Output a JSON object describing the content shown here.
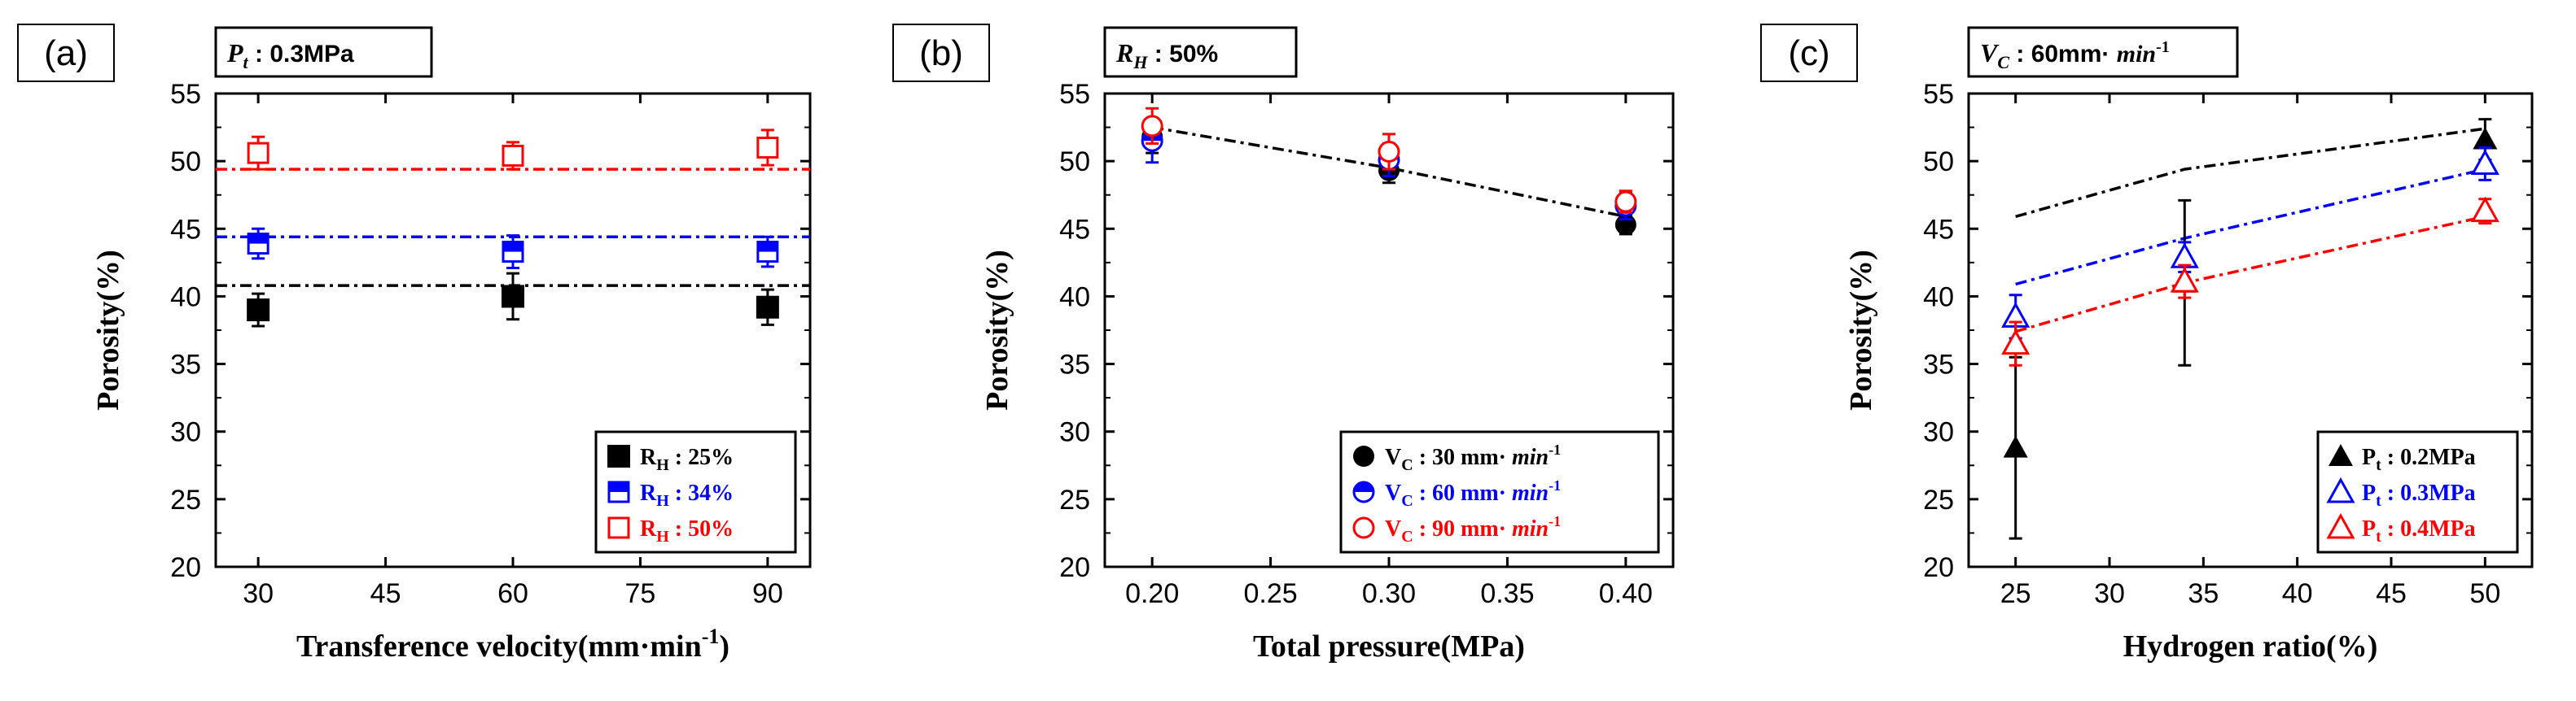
{
  "chart_data": [
    {
      "panel_label": "(a)",
      "type": "scatter",
      "condition": {
        "symbol": "P",
        "sub": "t",
        "text": " : 0.3MPa"
      },
      "xlabel": "Transference velocity(mm·min",
      "xlabel_sup": "-1",
      "xlabel_close": ")",
      "ylabel": "Porosity(%)",
      "xlim": [
        25,
        95
      ],
      "ylim": [
        20,
        55
      ],
      "xticks": [
        30,
        45,
        60,
        75,
        90
      ],
      "xtick_labels": [
        "30",
        "45",
        "60",
        "75",
        "90"
      ],
      "yticks": [
        20,
        25,
        30,
        35,
        40,
        45,
        50,
        55
      ],
      "grid": false,
      "legend_position": "bottom-right",
      "series": [
        {
          "legend_prefix": "R",
          "legend_sub": "H",
          "legend_text": " : 25%",
          "color": "#000000",
          "marker": "square-filled",
          "x": [
            30,
            60,
            90
          ],
          "y": [
            39.0,
            40.0,
            39.2
          ],
          "err": [
            1.2,
            1.7,
            1.3
          ],
          "fit": {
            "x": [
              25,
              95
            ],
            "y": [
              40.8,
              40.8
            ],
            "dash": "14,6,4,6"
          }
        },
        {
          "legend_prefix": "R",
          "legend_sub": "H",
          "legend_text": " : 34%",
          "color": "#0000ff",
          "marker": "square-half",
          "x": [
            30,
            60,
            90
          ],
          "y": [
            43.9,
            43.3,
            43.3
          ],
          "err": [
            1.1,
            1.2,
            1.1
          ],
          "fit": {
            "x": [
              25,
              95
            ],
            "y": [
              44.4,
              44.4
            ],
            "dash": "14,6,4,6"
          }
        },
        {
          "legend_prefix": "R",
          "legend_sub": "H",
          "legend_text": " : 50%",
          "color": "#ff0000",
          "marker": "square-open",
          "x": [
            30,
            60,
            90
          ],
          "y": [
            50.6,
            50.4,
            51.0
          ],
          "err": [
            1.2,
            1.0,
            1.3
          ],
          "fit": {
            "x": [
              25,
              95
            ],
            "y": [
              49.4,
              49.4
            ],
            "dash": "14,6,4,6"
          }
        }
      ]
    },
    {
      "panel_label": "(b)",
      "type": "scatter",
      "condition": {
        "symbol": "R",
        "sub": "H",
        "text": " : 50%"
      },
      "xlabel": "Total pressure(MPa)",
      "ylabel": "Porosity(%)",
      "xlim": [
        0.18,
        0.42
      ],
      "ylim": [
        20,
        55
      ],
      "xticks": [
        0.2,
        0.25,
        0.3,
        0.35,
        0.4
      ],
      "xtick_labels": [
        "0.20",
        "0.25",
        "0.30",
        "0.35",
        "0.40"
      ],
      "yticks": [
        20,
        25,
        30,
        35,
        40,
        45,
        50,
        55
      ],
      "grid": false,
      "legend_position": "bottom-right",
      "fit": {
        "x": [
          0.2,
          0.3,
          0.4
        ],
        "y": [
          52.5,
          49.5,
          45.9
        ],
        "color": "#000000",
        "dash": "14,6,4,6"
      },
      "series": [
        {
          "legend_prefix": "V",
          "legend_sub": "C",
          "legend_text": " : 30 mm· ",
          "legend_italic": "min",
          "legend_sup": "-1",
          "color": "#000000",
          "marker": "circle-filled",
          "x": [
            0.2,
            0.3,
            0.4
          ],
          "y": [
            51.8,
            49.3,
            45.3
          ],
          "err": [
            1.2,
            0.9,
            0.7
          ]
        },
        {
          "legend_prefix": "V",
          "legend_sub": "C",
          "legend_text": " : 60 mm· ",
          "legend_italic": "min",
          "legend_sup": "-1",
          "color": "#0000ff",
          "marker": "circle-half",
          "x": [
            0.2,
            0.3,
            0.4
          ],
          "y": [
            51.5,
            50.1,
            46.7
          ],
          "err": [
            1.6,
            1.2,
            1.0
          ]
        },
        {
          "legend_prefix": "V",
          "legend_sub": "C",
          "legend_text": " : 90 mm· ",
          "legend_italic": "min",
          "legend_sup": "-1",
          "color": "#ff0000",
          "marker": "circle-open",
          "x": [
            0.2,
            0.3,
            0.4
          ],
          "y": [
            52.6,
            50.7,
            47.0
          ],
          "err": [
            1.3,
            1.3,
            0.8
          ]
        }
      ]
    },
    {
      "panel_label": "(c)",
      "type": "scatter",
      "condition": {
        "symbol": "V",
        "sub": "C",
        "text": " : 60mm· ",
        "italic": "min",
        "sup": "-1"
      },
      "xlabel": "Hydrogen ratio(%)",
      "ylabel": "Porosity(%)",
      "xlim": [
        22.5,
        52.5
      ],
      "ylim": [
        20,
        55
      ],
      "xticks": [
        25,
        30,
        35,
        40,
        45,
        50
      ],
      "xtick_labels": [
        "25",
        "30",
        "35",
        "40",
        "45",
        "50"
      ],
      "yticks": [
        20,
        25,
        30,
        35,
        40,
        45,
        50,
        55
      ],
      "grid": false,
      "legend_position": "bottom-right",
      "series": [
        {
          "legend_prefix": "P",
          "legend_sub": "t",
          "legend_text": " : 0.2MPa",
          "color": "#000000",
          "marker": "triangle-filled",
          "x": [
            25,
            34,
            50
          ],
          "y": [
            28.8,
            41.0,
            51.6
          ],
          "err": [
            6.7,
            6.1,
            1.5
          ],
          "fit": {
            "x": [
              25,
              34,
              50
            ],
            "y": [
              45.9,
              49.4,
              52.4
            ],
            "dash": "14,6,4,6"
          }
        },
        {
          "legend_prefix": "P",
          "legend_sub": "t",
          "legend_text": " : 0.3MPa",
          "color": "#0000ff",
          "marker": "triangle-open",
          "x": [
            25,
            34,
            50
          ],
          "y": [
            38.5,
            42.9,
            49.8
          ],
          "err": [
            1.6,
            1.1,
            1.2
          ],
          "fit": {
            "x": [
              25,
              34,
              50
            ],
            "y": [
              40.9,
              44.3,
              49.4
            ],
            "dash": "14,6,4,6"
          }
        },
        {
          "legend_prefix": "P",
          "legend_sub": "t",
          "legend_text": " : 0.4MPa",
          "color": "#ff0000",
          "marker": "triangle-open",
          "x": [
            25,
            34,
            50
          ],
          "y": [
            36.5,
            41.1,
            46.3
          ],
          "err": [
            1.6,
            1.2,
            0.9
          ],
          "fit": {
            "x": [
              25,
              34,
              50
            ],
            "y": [
              37.4,
              41.0,
              45.9
            ],
            "dash": "14,6,4,6"
          }
        }
      ]
    }
  ]
}
